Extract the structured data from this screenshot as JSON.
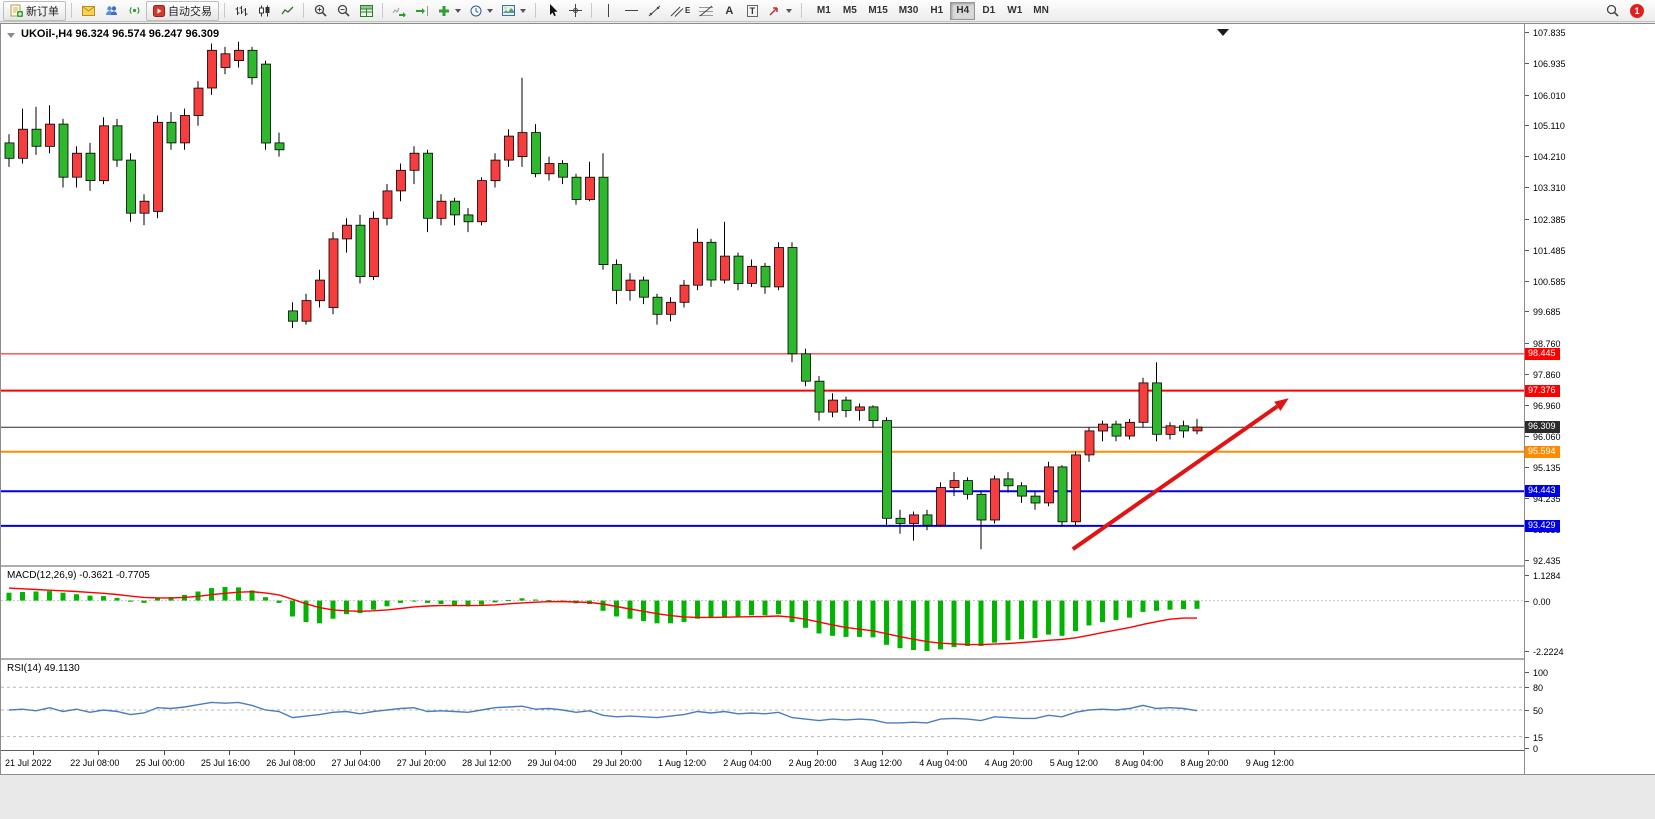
{
  "toolbar": {
    "new_order_label": "新订单",
    "autotrading_label": "自动交易",
    "timeframes": [
      "M1",
      "M5",
      "M15",
      "M30",
      "H1",
      "H4",
      "D1",
      "W1",
      "MN"
    ],
    "active_timeframe": "H4",
    "notification_count": "1",
    "text_tool_label": "A",
    "textbox_tool_label": "T",
    "channel_tool_label": "E"
  },
  "chart_data": {
    "type": "candlestick",
    "title": "UKOil-,H4 96.324 96.574 96.247 96.309",
    "symbol": "UKOil-",
    "period": "H4",
    "ohlc": {
      "open": "96.324",
      "high": "96.574",
      "low": "96.247",
      "close": "96.309"
    },
    "colors": {
      "bull": "#f73e3e",
      "bear": "#2db82d",
      "wick": "#000000",
      "macd_hist": "#00b400",
      "macd_signal": "#ff0000",
      "rsi_line": "#4a7ebb",
      "arrow": "#e01414"
    },
    "price_axis": {
      "min": 92.435,
      "max": 107.835,
      "ticks": [
        "107.835",
        "106.935",
        "106.010",
        "105.110",
        "104.210",
        "103.310",
        "102.385",
        "101.485",
        "100.585",
        "99.685",
        "98.760",
        "97.860",
        "96.960",
        "96.060",
        "95.135",
        "94.235",
        "93.335",
        "92.435"
      ]
    },
    "hlines": [
      {
        "price": 98.445,
        "label": "98.445",
        "color": "#ff0000",
        "tag_bg": "#ff0000",
        "width": 1
      },
      {
        "price": 97.376,
        "label": "97.376",
        "color": "#ff0000",
        "tag_bg": "#ff0000",
        "width": 2
      },
      {
        "price": 96.309,
        "label": "96.309",
        "color": "#2b2b2b",
        "tag_bg": "#2b2b2b",
        "width": 1
      },
      {
        "price": 95.594,
        "label": "95.594",
        "color": "#ff8a00",
        "tag_bg": "#ff8a00",
        "width": 2
      },
      {
        "price": 94.443,
        "label": "94.443",
        "color": "#0000e8",
        "tag_bg": "#0000e8",
        "width": 2
      },
      {
        "price": 93.429,
        "label": "93.429",
        "color": "#0000e8",
        "tag_bg": "#0000e8",
        "width": 2
      }
    ],
    "arrow": {
      "from_bar": 78.8,
      "from_price": 92.75,
      "to_bar": 94.8,
      "to_price": 97.15
    },
    "candles": [
      [
        104.6,
        104.85,
        103.9,
        104.15
      ],
      [
        104.15,
        105.6,
        104.0,
        105.0
      ],
      [
        105.0,
        105.65,
        104.25,
        104.5
      ],
      [
        104.5,
        105.7,
        104.3,
        105.15
      ],
      [
        105.15,
        105.3,
        103.3,
        103.6
      ],
      [
        103.6,
        104.5,
        103.3,
        104.3
      ],
      [
        104.3,
        104.6,
        103.2,
        103.5
      ],
      [
        103.5,
        105.35,
        103.4,
        105.1
      ],
      [
        105.1,
        105.3,
        103.9,
        104.1
      ],
      [
        104.1,
        104.3,
        102.3,
        102.55
      ],
      [
        102.55,
        103.1,
        102.2,
        102.9
      ],
      [
        102.6,
        105.4,
        102.4,
        105.2
      ],
      [
        105.2,
        105.5,
        104.4,
        104.6
      ],
      [
        104.6,
        105.6,
        104.4,
        105.4
      ],
      [
        105.4,
        106.4,
        105.1,
        106.2
      ],
      [
        106.2,
        107.5,
        106.0,
        107.3
      ],
      [
        106.8,
        107.4,
        106.6,
        107.2
      ],
      [
        107.0,
        107.55,
        106.8,
        107.3
      ],
      [
        107.3,
        107.4,
        106.3,
        106.5
      ],
      [
        106.9,
        107.0,
        104.4,
        104.6
      ],
      [
        104.6,
        104.9,
        104.2,
        104.4
      ],
      [
        99.7,
        99.95,
        99.2,
        99.4
      ],
      [
        99.4,
        100.2,
        99.3,
        100.0
      ],
      [
        100.0,
        100.9,
        99.8,
        100.6
      ],
      [
        99.8,
        102.0,
        99.6,
        101.8
      ],
      [
        101.8,
        102.4,
        101.4,
        102.2
      ],
      [
        102.2,
        102.5,
        100.5,
        100.7
      ],
      [
        100.7,
        102.6,
        100.6,
        102.4
      ],
      [
        102.4,
        103.4,
        102.2,
        103.2
      ],
      [
        103.2,
        104.0,
        102.9,
        103.8
      ],
      [
        103.8,
        104.5,
        103.4,
        104.3
      ],
      [
        104.3,
        104.4,
        102.0,
        102.4
      ],
      [
        102.4,
        103.1,
        102.2,
        102.9
      ],
      [
        102.9,
        103.0,
        102.2,
        102.5
      ],
      [
        102.5,
        102.7,
        102.0,
        102.3
      ],
      [
        102.3,
        103.6,
        102.2,
        103.5
      ],
      [
        103.5,
        104.3,
        103.3,
        104.1
      ],
      [
        104.1,
        105.0,
        103.9,
        104.8
      ],
      [
        104.2,
        106.5,
        103.9,
        104.9
      ],
      [
        104.9,
        105.15,
        103.6,
        103.7
      ],
      [
        103.7,
        104.2,
        103.5,
        104.0
      ],
      [
        104.0,
        104.1,
        103.4,
        103.6
      ],
      [
        103.6,
        103.7,
        102.8,
        102.95
      ],
      [
        102.95,
        104.05,
        102.9,
        103.6
      ],
      [
        103.6,
        104.3,
        100.9,
        101.05
      ],
      [
        101.05,
        101.2,
        99.9,
        100.3
      ],
      [
        100.3,
        100.8,
        100.0,
        100.6
      ],
      [
        100.6,
        100.7,
        99.9,
        100.1
      ],
      [
        100.1,
        100.2,
        99.3,
        99.6
      ],
      [
        99.6,
        100.1,
        99.4,
        99.95
      ],
      [
        99.95,
        100.6,
        99.8,
        100.45
      ],
      [
        100.45,
        102.1,
        100.3,
        101.7
      ],
      [
        101.7,
        101.8,
        100.4,
        100.6
      ],
      [
        100.6,
        102.3,
        100.5,
        101.3
      ],
      [
        101.3,
        101.4,
        100.3,
        100.5
      ],
      [
        100.5,
        101.2,
        100.4,
        101.0
      ],
      [
        101.0,
        101.1,
        100.2,
        100.4
      ],
      [
        100.4,
        101.7,
        100.3,
        101.55
      ],
      [
        101.55,
        101.7,
        98.2,
        98.45
      ],
      [
        98.45,
        98.6,
        97.5,
        97.65
      ],
      [
        97.65,
        97.8,
        96.5,
        96.75
      ],
      [
        96.75,
        97.3,
        96.6,
        97.1
      ],
      [
        97.1,
        97.2,
        96.6,
        96.8
      ],
      [
        96.8,
        97.0,
        96.5,
        96.9
      ],
      [
        96.9,
        96.95,
        96.3,
        96.5
      ],
      [
        96.5,
        96.6,
        93.4,
        93.65
      ],
      [
        93.65,
        93.9,
        93.2,
        93.5
      ],
      [
        93.5,
        93.85,
        93.0,
        93.75
      ],
      [
        93.75,
        93.9,
        93.3,
        93.45
      ],
      [
        93.45,
        94.7,
        93.4,
        94.55
      ],
      [
        94.55,
        95.0,
        94.3,
        94.75
      ],
      [
        94.75,
        94.85,
        94.2,
        94.35
      ],
      [
        94.35,
        94.45,
        92.75,
        93.6
      ],
      [
        93.6,
        94.9,
        93.5,
        94.8
      ],
      [
        94.8,
        95.0,
        94.4,
        94.6
      ],
      [
        94.6,
        94.7,
        94.1,
        94.3
      ],
      [
        94.3,
        94.45,
        93.9,
        94.1
      ],
      [
        94.1,
        95.3,
        94.0,
        95.15
      ],
      [
        95.15,
        95.2,
        93.4,
        93.55
      ],
      [
        93.55,
        95.6,
        93.45,
        95.5
      ],
      [
        95.5,
        96.3,
        95.3,
        96.2
      ],
      [
        96.2,
        96.5,
        95.9,
        96.4
      ],
      [
        96.4,
        96.5,
        95.9,
        96.05
      ],
      [
        96.05,
        96.55,
        95.95,
        96.45
      ],
      [
        96.45,
        97.75,
        96.3,
        97.6
      ],
      [
        97.6,
        98.2,
        95.9,
        96.1
      ],
      [
        96.1,
        96.45,
        95.95,
        96.35
      ],
      [
        96.35,
        96.5,
        96.0,
        96.2
      ],
      [
        96.2,
        96.55,
        96.1,
        96.31
      ]
    ],
    "time_labels": [
      "21 Jul 2022",
      "22 Jul 08:00",
      "25 Jul 00:00",
      "25 Jul 16:00",
      "26 Jul 08:00",
      "27 Jul 04:00",
      "27 Jul 20:00",
      "28 Jul 12:00",
      "29 Jul 04:00",
      "29 Jul 20:00",
      "1 Aug 12:00",
      "2 Aug 04:00",
      "2 Aug 20:00",
      "3 Aug 12:00",
      "4 Aug 04:00",
      "4 Aug 20:00",
      "5 Aug 12:00",
      "8 Aug 04:00",
      "8 Aug 20:00",
      "9 Aug 12:00"
    ],
    "macd": {
      "label": "MACD(12,26,9) -0.3621 -0.7705",
      "params": "12,26,9",
      "value_main": "-0.3621",
      "value_signal": "-0.7705",
      "ymax": 1.1284,
      "ymin": -2.2224,
      "axis": [
        "1.1284",
        "0.00",
        "-2.2224"
      ],
      "values": [
        0.35,
        0.38,
        0.4,
        0.42,
        0.35,
        0.28,
        0.22,
        0.2,
        0.12,
        -0.05,
        -0.1,
        0.1,
        0.15,
        0.25,
        0.4,
        0.55,
        0.6,
        0.58,
        0.45,
        0.15,
        -0.1,
        -0.7,
        -0.95,
        -1.0,
        -0.8,
        -0.6,
        -0.55,
        -0.4,
        -0.25,
        -0.1,
        0.0,
        -0.1,
        -0.15,
        -0.2,
        -0.25,
        -0.18,
        -0.08,
        0.02,
        0.1,
        0.05,
        0.02,
        -0.02,
        -0.12,
        -0.15,
        -0.45,
        -0.7,
        -0.8,
        -0.9,
        -1.0,
        -1.0,
        -0.95,
        -0.8,
        -0.75,
        -0.7,
        -0.7,
        -0.65,
        -0.65,
        -0.6,
        -0.95,
        -1.2,
        -1.45,
        -1.55,
        -1.6,
        -1.6,
        -1.62,
        -1.95,
        -2.1,
        -2.18,
        -2.22,
        -2.15,
        -2.05,
        -2.0,
        -2.0,
        -1.85,
        -1.75,
        -1.7,
        -1.65,
        -1.5,
        -1.55,
        -1.35,
        -1.1,
        -0.95,
        -0.85,
        -0.75,
        -0.5,
        -0.45,
        -0.4,
        -0.38,
        -0.3621
      ],
      "signal": [
        0.55,
        0.52,
        0.49,
        0.46,
        0.43,
        0.4,
        0.36,
        0.32,
        0.27,
        0.2,
        0.14,
        0.12,
        0.12,
        0.14,
        0.19,
        0.26,
        0.32,
        0.37,
        0.39,
        0.34,
        0.25,
        0.06,
        -0.14,
        -0.31,
        -0.41,
        -0.45,
        -0.47,
        -0.45,
        -0.41,
        -0.35,
        -0.28,
        -0.24,
        -0.22,
        -0.22,
        -0.22,
        -0.21,
        -0.19,
        -0.14,
        -0.1,
        -0.07,
        -0.05,
        -0.04,
        -0.06,
        -0.08,
        -0.15,
        -0.26,
        -0.37,
        -0.47,
        -0.58,
        -0.66,
        -0.72,
        -0.74,
        -0.74,
        -0.73,
        -0.72,
        -0.71,
        -0.7,
        -0.68,
        -0.73,
        -0.82,
        -0.95,
        -1.07,
        -1.18,
        -1.26,
        -1.33,
        -1.46,
        -1.59,
        -1.7,
        -1.81,
        -1.88,
        -1.91,
        -1.93,
        -1.94,
        -1.92,
        -1.89,
        -1.85,
        -1.81,
        -1.75,
        -1.71,
        -1.64,
        -1.53,
        -1.41,
        -1.3,
        -1.19,
        -1.05,
        -0.93,
        -0.82,
        -0.77,
        -0.7705
      ]
    },
    "rsi": {
      "label": "RSI(14) 49.1130",
      "period": "14",
      "value": "49.1130",
      "ymax": 100,
      "ymin": 0,
      "levels": [
        80,
        50,
        15
      ],
      "axis": [
        "100",
        "80",
        "50",
        "15",
        "0"
      ],
      "values": [
        50,
        51,
        49,
        53,
        48,
        51,
        47,
        50,
        48,
        44,
        46,
        53,
        52,
        54,
        57,
        60,
        59,
        60,
        56,
        50,
        48,
        40,
        42,
        44,
        47,
        48,
        45,
        48,
        50,
        52,
        53,
        48,
        49,
        48,
        47,
        50,
        53,
        54,
        55,
        51,
        52,
        50,
        47,
        49,
        43,
        41,
        42,
        41,
        40,
        42,
        44,
        48,
        46,
        48,
        45,
        46,
        45,
        47,
        40,
        38,
        36,
        38,
        37,
        38,
        37,
        33,
        33,
        34,
        33,
        38,
        39,
        38,
        36,
        41,
        40,
        39,
        39,
        43,
        41,
        47,
        50,
        51,
        50,
        52,
        56,
        52,
        53,
        52,
        49.11
      ]
    }
  }
}
